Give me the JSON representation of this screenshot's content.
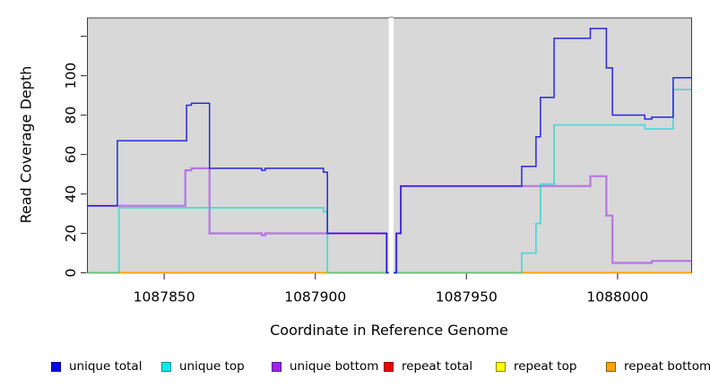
{
  "figure": {
    "xlabel": "Coordinate in Reference Genome",
    "ylabel": "Read Coverage Depth"
  },
  "axes": {
    "x": {
      "ticks": [
        {
          "value": 1087850,
          "label": "1087850"
        },
        {
          "value": 1087900,
          "label": "1087900"
        },
        {
          "value": 1087950,
          "label": "1087950"
        },
        {
          "value": 1088000,
          "label": "1088000"
        }
      ]
    },
    "y": {
      "ticks": [
        {
          "value": 0,
          "label": "0"
        },
        {
          "value": 20,
          "label": "20"
        },
        {
          "value": 40,
          "label": "40"
        },
        {
          "value": 60,
          "label": "60"
        },
        {
          "value": 80,
          "label": "80"
        },
        {
          "value": 100,
          "label": "100"
        },
        {
          "value": 120,
          "label": ""
        }
      ]
    }
  },
  "chart_data": {
    "type": "line",
    "subtype": "step-after",
    "title": "",
    "xlabel": "Coordinate in Reference Genome",
    "ylabel": "Read Coverage Depth",
    "xlim": [
      1087824.6,
      1088024.5
    ],
    "ylim": [
      0,
      129.3
    ],
    "x_tick_values": [
      1087850,
      1087900,
      1087950,
      1088000
    ],
    "y_tick_values": [
      0,
      20,
      40,
      60,
      80,
      100,
      120
    ],
    "grid": false,
    "plot_bg": "#D8D8D8",
    "border_color": "#404040",
    "gap_band": {
      "from": 1087924.3,
      "to": 1087925.9,
      "color": "#FFFFFF",
      "note": "white masked gap in reference"
    },
    "series": [
      {
        "name": "repeat total",
        "color": "#DD0000",
        "opacity": 1,
        "width": 1.5,
        "points": [
          [
            1087824.6,
            0
          ]
        ]
      },
      {
        "name": "repeat top",
        "color": "#F0F000",
        "opacity": 1,
        "width": 1.5,
        "points": [
          [
            1087824.6,
            0
          ]
        ]
      },
      {
        "name": "repeat bottom",
        "color": "#FFA500",
        "opacity": 1,
        "width": 1.8,
        "points": [
          [
            1087824.6,
            0
          ]
        ]
      },
      {
        "name": "unique bottom",
        "color": "#A020F0",
        "opacity": 0.55,
        "width": 2.2,
        "points": [
          [
            1087824.6,
            34
          ],
          [
            1087857,
            52
          ],
          [
            1087859,
            53
          ],
          [
            1087865,
            20
          ],
          [
            1087882.3,
            19
          ],
          [
            1087883.4,
            20
          ],
          [
            1087923.6,
            0
          ],
          [
            1087926.8,
            20
          ],
          [
            1087928.3,
            44
          ],
          [
            1087991,
            49
          ],
          [
            1087996.3,
            29
          ],
          [
            1087998.3,
            5
          ],
          [
            1088011.3,
            6
          ]
        ]
      },
      {
        "name": "unique top",
        "color": "#00D5D5",
        "opacity": 0.62,
        "width": 1.8,
        "points": [
          [
            1087824.6,
            0
          ],
          [
            1087835,
            33
          ],
          [
            1087902.7,
            31
          ],
          [
            1087904,
            0
          ],
          [
            1087968.3,
            10
          ],
          [
            1087973,
            25
          ],
          [
            1087974.5,
            45
          ],
          [
            1087979,
            75
          ],
          [
            1088009,
            73
          ],
          [
            1088018.4,
            93
          ]
        ]
      },
      {
        "name": "unique total",
        "color": "#1414E0",
        "opacity": 0.9,
        "width": 1.5,
        "points": [
          [
            1087824.6,
            34
          ],
          [
            1087834.5,
            67
          ],
          [
            1087857.4,
            85
          ],
          [
            1087859,
            86
          ],
          [
            1087865,
            53
          ],
          [
            1087882.3,
            52
          ],
          [
            1087883.4,
            53
          ],
          [
            1087902.7,
            51
          ],
          [
            1087904,
            20
          ],
          [
            1087923.6,
            0
          ],
          [
            1087926.8,
            20
          ],
          [
            1087928.3,
            44
          ],
          [
            1087968.3,
            54
          ],
          [
            1087973,
            69
          ],
          [
            1087974.5,
            89
          ],
          [
            1087979,
            119
          ],
          [
            1087991,
            124
          ],
          [
            1087996.3,
            104
          ],
          [
            1087998.3,
            80
          ],
          [
            1088009,
            78
          ],
          [
            1088011.3,
            79
          ],
          [
            1088018.4,
            99
          ]
        ]
      }
    ]
  },
  "legend": {
    "items": [
      {
        "label": "unique total",
        "color": "#0000EE",
        "border": "#00008B"
      },
      {
        "label": "unique top",
        "color": "#00EEEE",
        "border": "#008B8B"
      },
      {
        "label": "unique bottom",
        "color": "#A020F0",
        "border": "#551A8B"
      },
      {
        "label": "repeat total",
        "color": "#EE0000",
        "border": "#8B0000"
      },
      {
        "label": "repeat top",
        "color": "#FFFF00",
        "border": "#8B8B00"
      },
      {
        "label": "repeat bottom",
        "color": "#FFA500",
        "border": "#8B5A00"
      }
    ]
  }
}
